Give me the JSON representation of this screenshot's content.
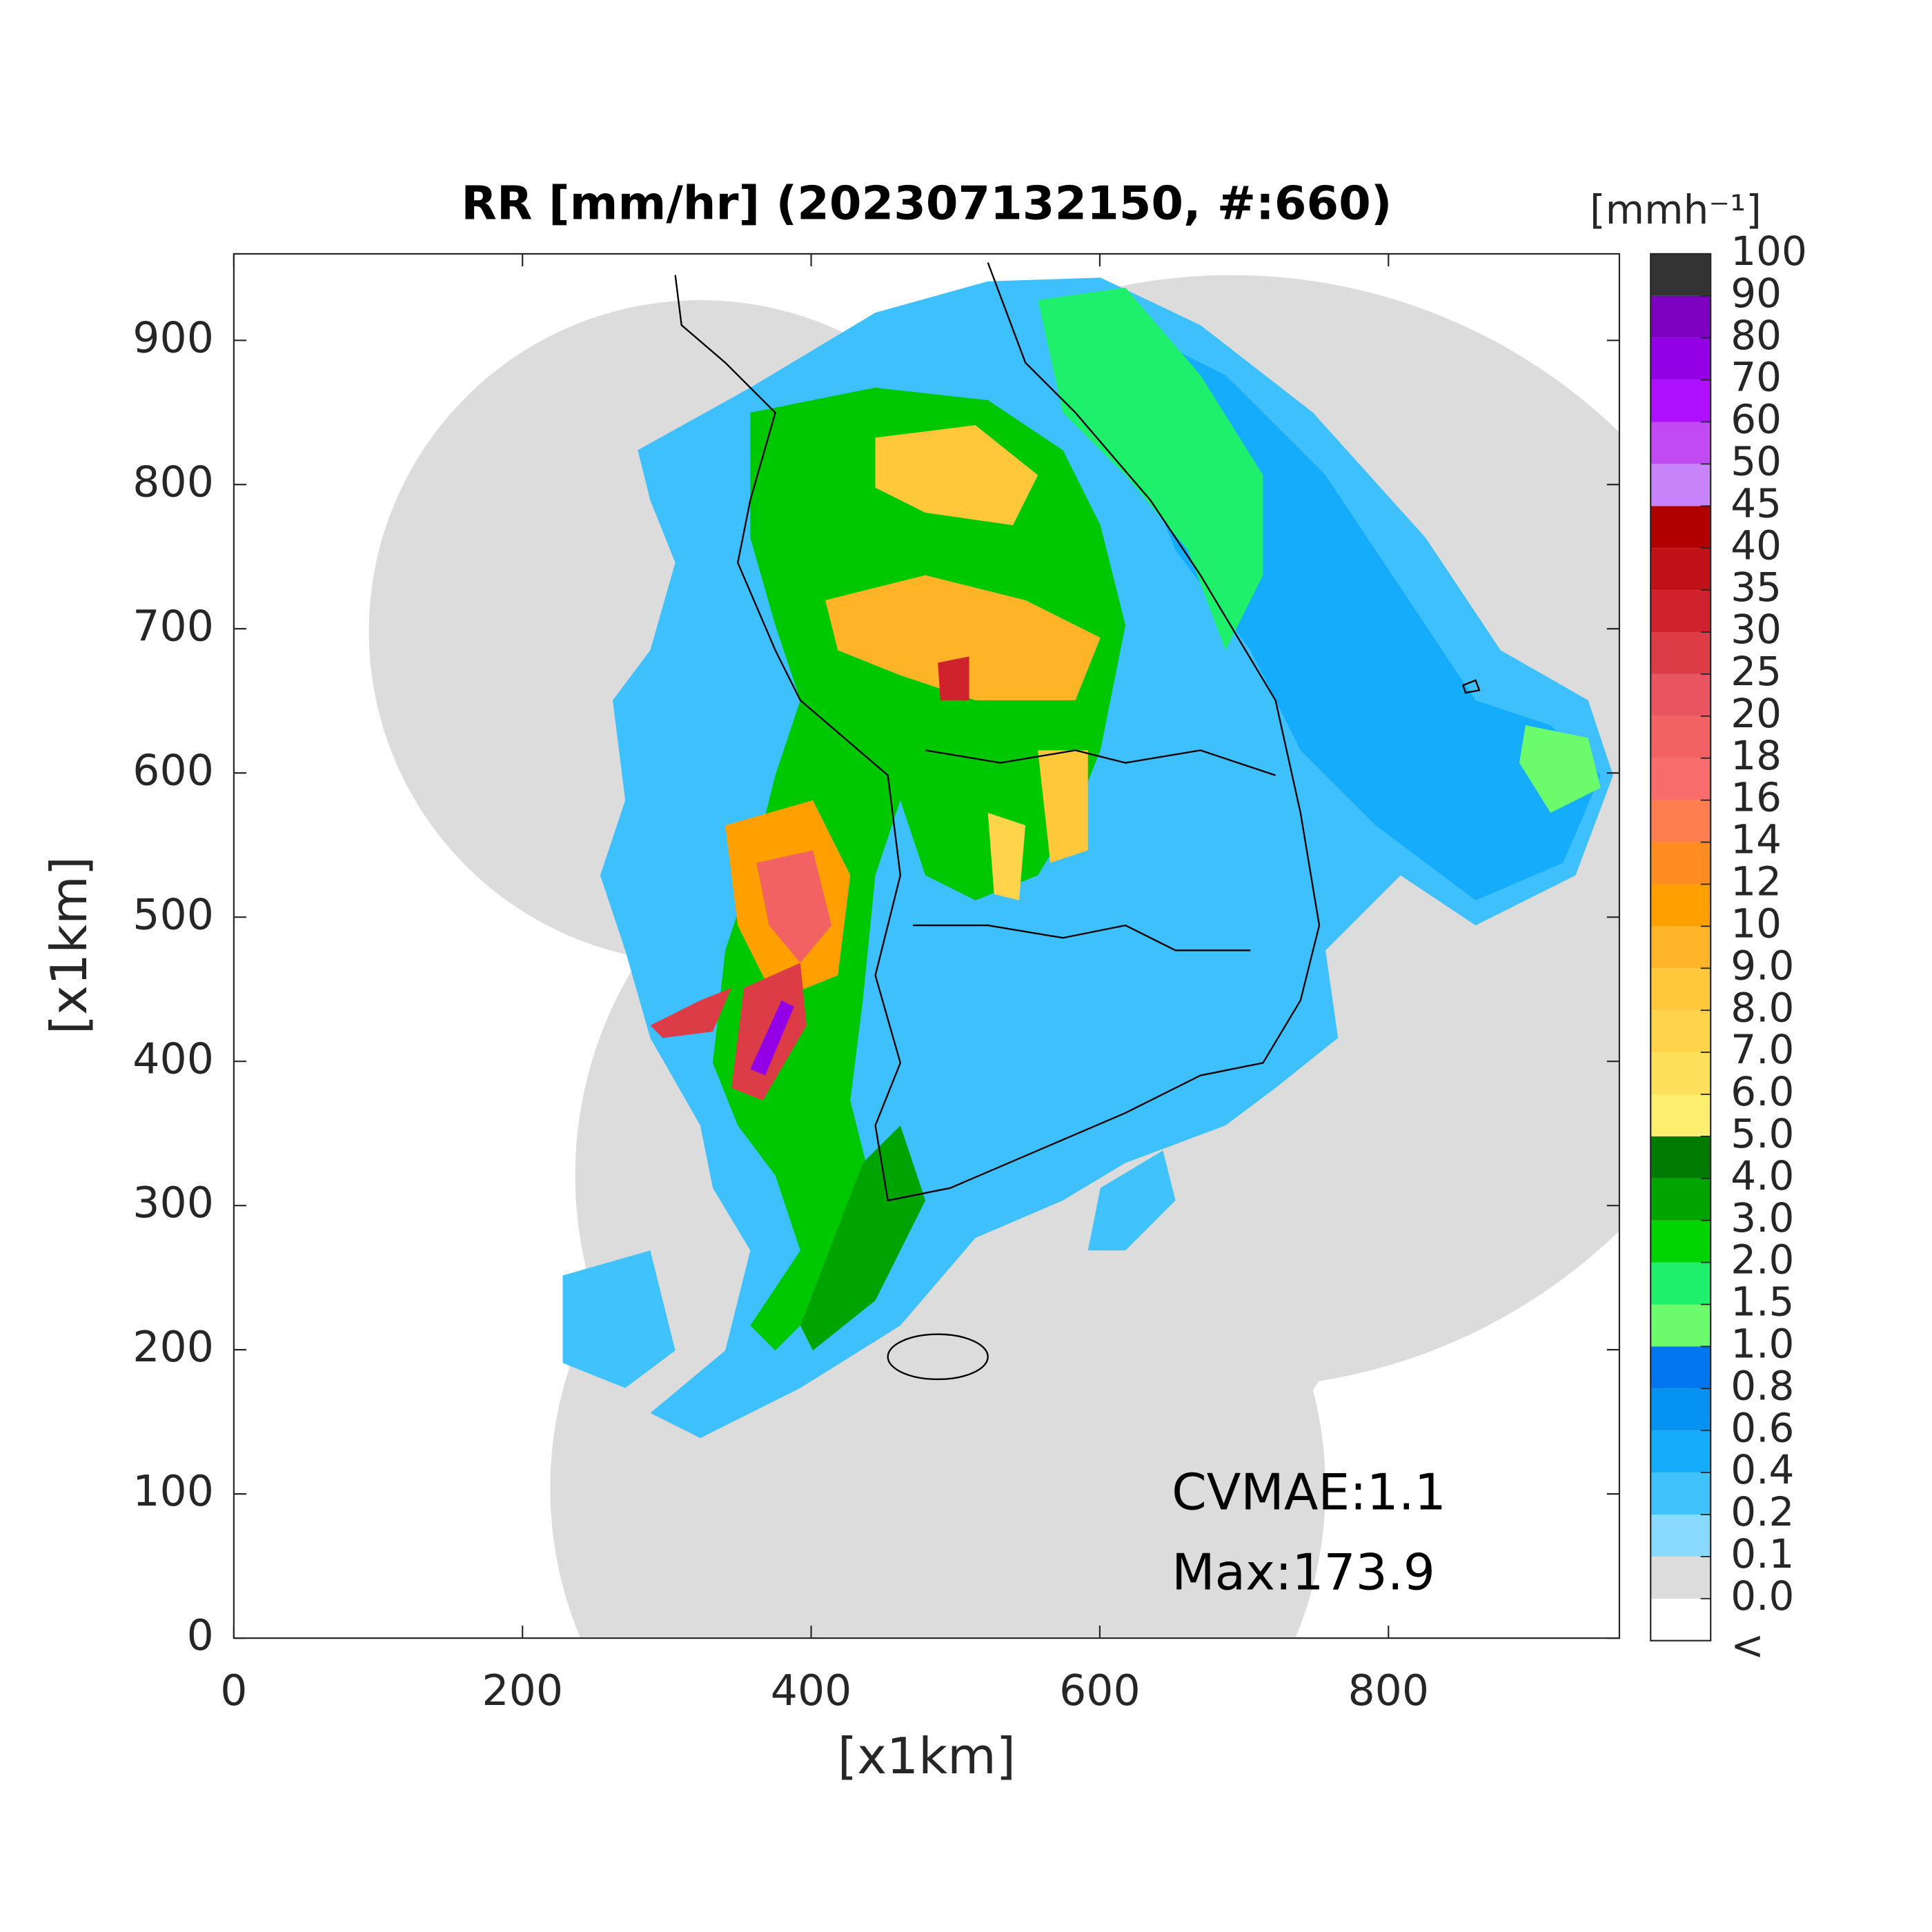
{
  "chart_data": {
    "type": "map",
    "title": "RR [mm/hr] (202307132150, #:660)",
    "xlabel": "[x1km]",
    "ylabel": "[x1km]",
    "xlim": [
      0,
      960
    ],
    "ylim": [
      0,
      960
    ],
    "xticks": [
      0,
      200,
      400,
      600,
      800
    ],
    "yticks": [
      0,
      100,
      200,
      300,
      400,
      500,
      600,
      700,
      800,
      900
    ],
    "annotations": [
      "CVMAE:1.1",
      "Max:173.9"
    ],
    "colorbar": {
      "title": "[mmh⁻¹]",
      "under_label": "<",
      "ticks": [
        {
          "value": 0,
          "label": "0.0"
        },
        0.1,
        0.2,
        0.4,
        0.6,
        0.8,
        {
          "value": 1,
          "label": "1.0"
        },
        1.5,
        {
          "value": 2,
          "label": "2.0"
        },
        {
          "value": 3,
          "label": "3.0"
        },
        {
          "value": 4,
          "label": "4.0"
        },
        {
          "value": 5,
          "label": "5.0"
        },
        {
          "value": 6,
          "label": "6.0"
        },
        {
          "value": 7,
          "label": "7.0"
        },
        {
          "value": 8,
          "label": "8.0"
        },
        {
          "value": 9,
          "label": "9.0"
        },
        10,
        12,
        14,
        16,
        18,
        20,
        25,
        30,
        35,
        40,
        45,
        50,
        60,
        70,
        80,
        90,
        100
      ],
      "colors": [
        "#ffffff",
        "#dcdcdc",
        "#8ad9ff",
        "#40c2fd",
        "#14acfb",
        "#0592f0",
        "#0077ee",
        "#6cfb6c",
        "#1ef06c",
        "#00d400",
        "#00a400",
        "#007a00",
        "#ffef6e",
        "#ffe05c",
        "#ffd44a",
        "#ffc83a",
        "#ffb428",
        "#ffa000",
        "#ff8c20",
        "#ff7e50",
        "#f86c6c",
        "#f26262",
        "#e85560",
        "#dc3c46",
        "#d0222c",
        "#c01018",
        "#b00000",
        "#c884fa",
        "#c24af2",
        "#ae10ff",
        "#9400e6",
        "#7e00c0",
        "#333333"
      ]
    }
  }
}
